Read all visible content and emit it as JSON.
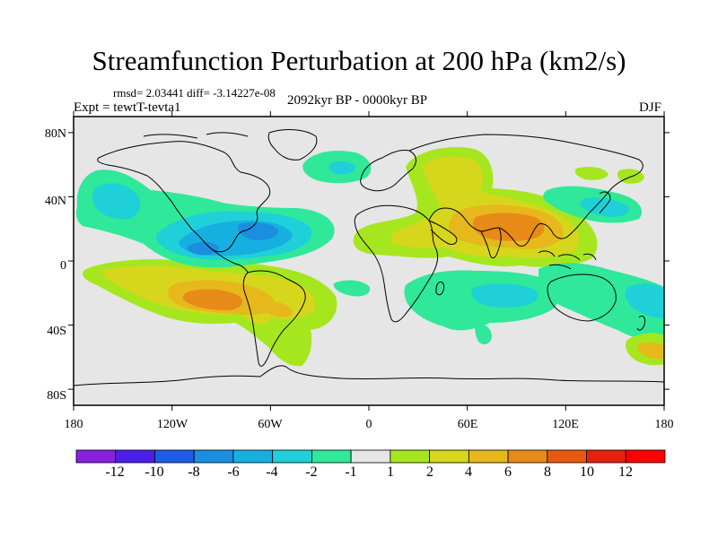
{
  "title": "Streamfunction Perturbation at 200 hPa (km2/s)",
  "stats_line": "rmsd= 2.03441 diff= -3.14227e-08",
  "experiment_label": "Expt = tewtT-tevta1",
  "period_label": "2092kyr BP - 0000kyr BP",
  "season_label": "DJF",
  "map": {
    "projection": "cylindrical equidistant",
    "lon_range": [
      -180,
      180
    ],
    "lat_range": [
      -90,
      90
    ],
    "lon_tick_labels": [
      "180",
      "120W",
      "60W",
      "0",
      "60E",
      "120E",
      "180"
    ],
    "lat_tick_labels": [
      "80N",
      "40N",
      "0",
      "40S",
      "80S"
    ]
  },
  "colorbar": {
    "labels": [
      "-12",
      "-10",
      "-8",
      "-6",
      "-4",
      "-2",
      "-1",
      "1",
      "2",
      "4",
      "6",
      "8",
      "10",
      "12"
    ],
    "colors": [
      "#8a1fe0",
      "#4a1fe8",
      "#1f5ce6",
      "#1a8fe0",
      "#16b0e0",
      "#1fd0d8",
      "#2fe89a",
      "#e6e6e6",
      "#a6e61f",
      "#d6d61c",
      "#e6b81c",
      "#e88a18",
      "#e85a12",
      "#e8200e",
      "#ff0000"
    ]
  },
  "chart_data": {
    "type": "contour-map",
    "variable": "Streamfunction Perturbation at 200 hPa",
    "units": "km2/s",
    "levels": [
      -12,
      -10,
      -8,
      -6,
      -4,
      -2,
      -1,
      1,
      2,
      4,
      6,
      8,
      10,
      12
    ],
    "features": [
      {
        "lon": 90,
        "lat": 30,
        "value": 7
      },
      {
        "lon": 40,
        "lat": 45,
        "value": 3
      },
      {
        "lon": -95,
        "lat": -20,
        "value": 7
      },
      {
        "lon": -60,
        "lat": -25,
        "value": 5
      },
      {
        "lon": -150,
        "lat": -10,
        "value": 2
      },
      {
        "lon": -70,
        "lat": 25,
        "value": -5
      },
      {
        "lon": -150,
        "lat": 40,
        "value": -4
      },
      {
        "lon": 80,
        "lat": -20,
        "value": -3
      },
      {
        "lon": 165,
        "lat": -25,
        "value": -3
      },
      {
        "lon": 175,
        "lat": -55,
        "value": 3
      }
    ]
  }
}
